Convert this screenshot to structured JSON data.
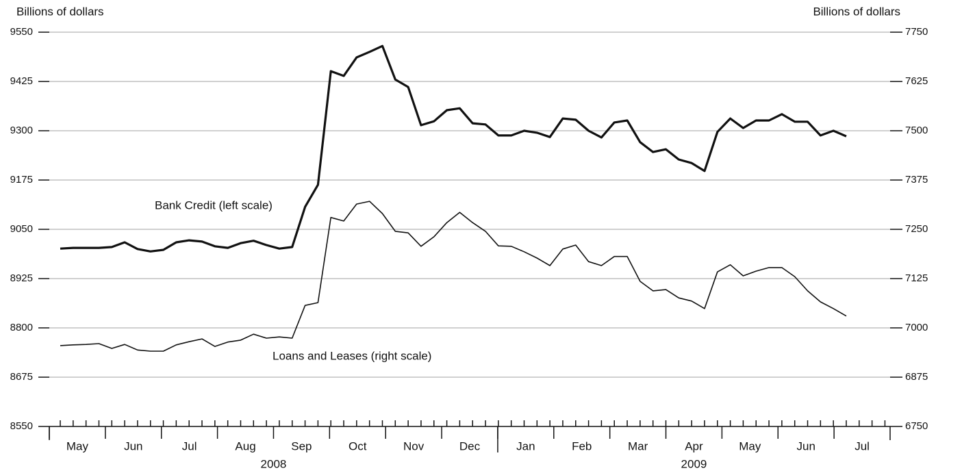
{
  "chart_data": {
    "type": "line",
    "y_label": "Billions of dollars",
    "y2_label": "Billions of dollars",
    "annotations": [
      "Bank Credit (left scale)",
      "Loans and Leases (right scale)"
    ],
    "months": [
      "May",
      "Jun",
      "Jul",
      "Aug",
      "Sep",
      "Oct",
      "Nov",
      "Dec",
      "Jan",
      "Feb",
      "Mar",
      "Apr",
      "May",
      "Jun",
      "Jul"
    ],
    "years": [
      "2008",
      "2009"
    ],
    "categories": [
      null,
      null,
      null,
      null,
      null,
      null,
      null,
      null,
      null,
      null,
      null,
      null,
      null,
      null,
      null,
      null,
      null,
      null,
      null,
      null,
      null,
      null,
      null,
      null,
      null,
      null,
      null,
      null,
      null,
      null,
      null,
      null,
      null,
      null,
      null,
      null,
      null,
      null,
      null,
      null,
      null,
      null,
      null,
      null,
      null,
      null,
      null,
      null,
      null,
      null,
      null,
      null,
      null,
      null,
      null,
      null,
      null,
      null,
      null,
      null,
      null,
      null
    ],
    "series": [
      {
        "name": "Bank Credit (left scale)",
        "color": "#111111",
        "values": [
          9001,
          9003,
          9003,
          9003,
          9005,
          9017,
          9000,
          8994,
          8998,
          9017,
          9022,
          9019,
          9007,
          9003,
          9015,
          9021,
          9010,
          9001,
          9005,
          9107,
          9163,
          9451,
          9439,
          9486,
          9500,
          9515,
          9430,
          9411,
          9314,
          9324,
          9352,
          9357,
          9319,
          9316,
          9288,
          9288,
          9300,
          9295,
          9284,
          9331,
          9328,
          9300,
          9283,
          9321,
          9326,
          9271,
          9246,
          9253,
          9227,
          9218,
          9198,
          9297,
          9331,
          9307,
          9326,
          9326,
          9342,
          9323,
          9323,
          9288,
          9300,
          9286
        ]
      },
      {
        "name": "Loans and Leases (right scale)",
        "color": "#111111",
        "axis": "y2",
        "values": [
          6955,
          6957,
          6958,
          6960,
          6948,
          6958,
          6944,
          6941,
          6941,
          6957,
          6965,
          6972,
          6953,
          6964,
          6969,
          6984,
          6974,
          6977,
          6974,
          7057,
          7064,
          7280,
          7271,
          7314,
          7321,
          7290,
          7245,
          7241,
          7207,
          7231,
          7267,
          7293,
          7267,
          7245,
          7208,
          7207,
          7193,
          7177,
          7158,
          7200,
          7210,
          7168,
          7158,
          7181,
          7181,
          7118,
          7094,
          7097,
          7076,
          7068,
          7049,
          7142,
          7160,
          7132,
          7144,
          7153,
          7153,
          7130,
          7094,
          7066,
          7049,
          7030
        ]
      }
    ],
    "ylim": [
      8550,
      9550
    ],
    "yticks": [
      8550,
      8675,
      8800,
      8925,
      9050,
      9175,
      9300,
      9425,
      9550
    ],
    "y2lim": [
      6750,
      7750
    ],
    "y2ticks": [
      6750,
      6875,
      7000,
      7125,
      7250,
      7375,
      7500,
      7625,
      7750
    ],
    "grid": true
  }
}
